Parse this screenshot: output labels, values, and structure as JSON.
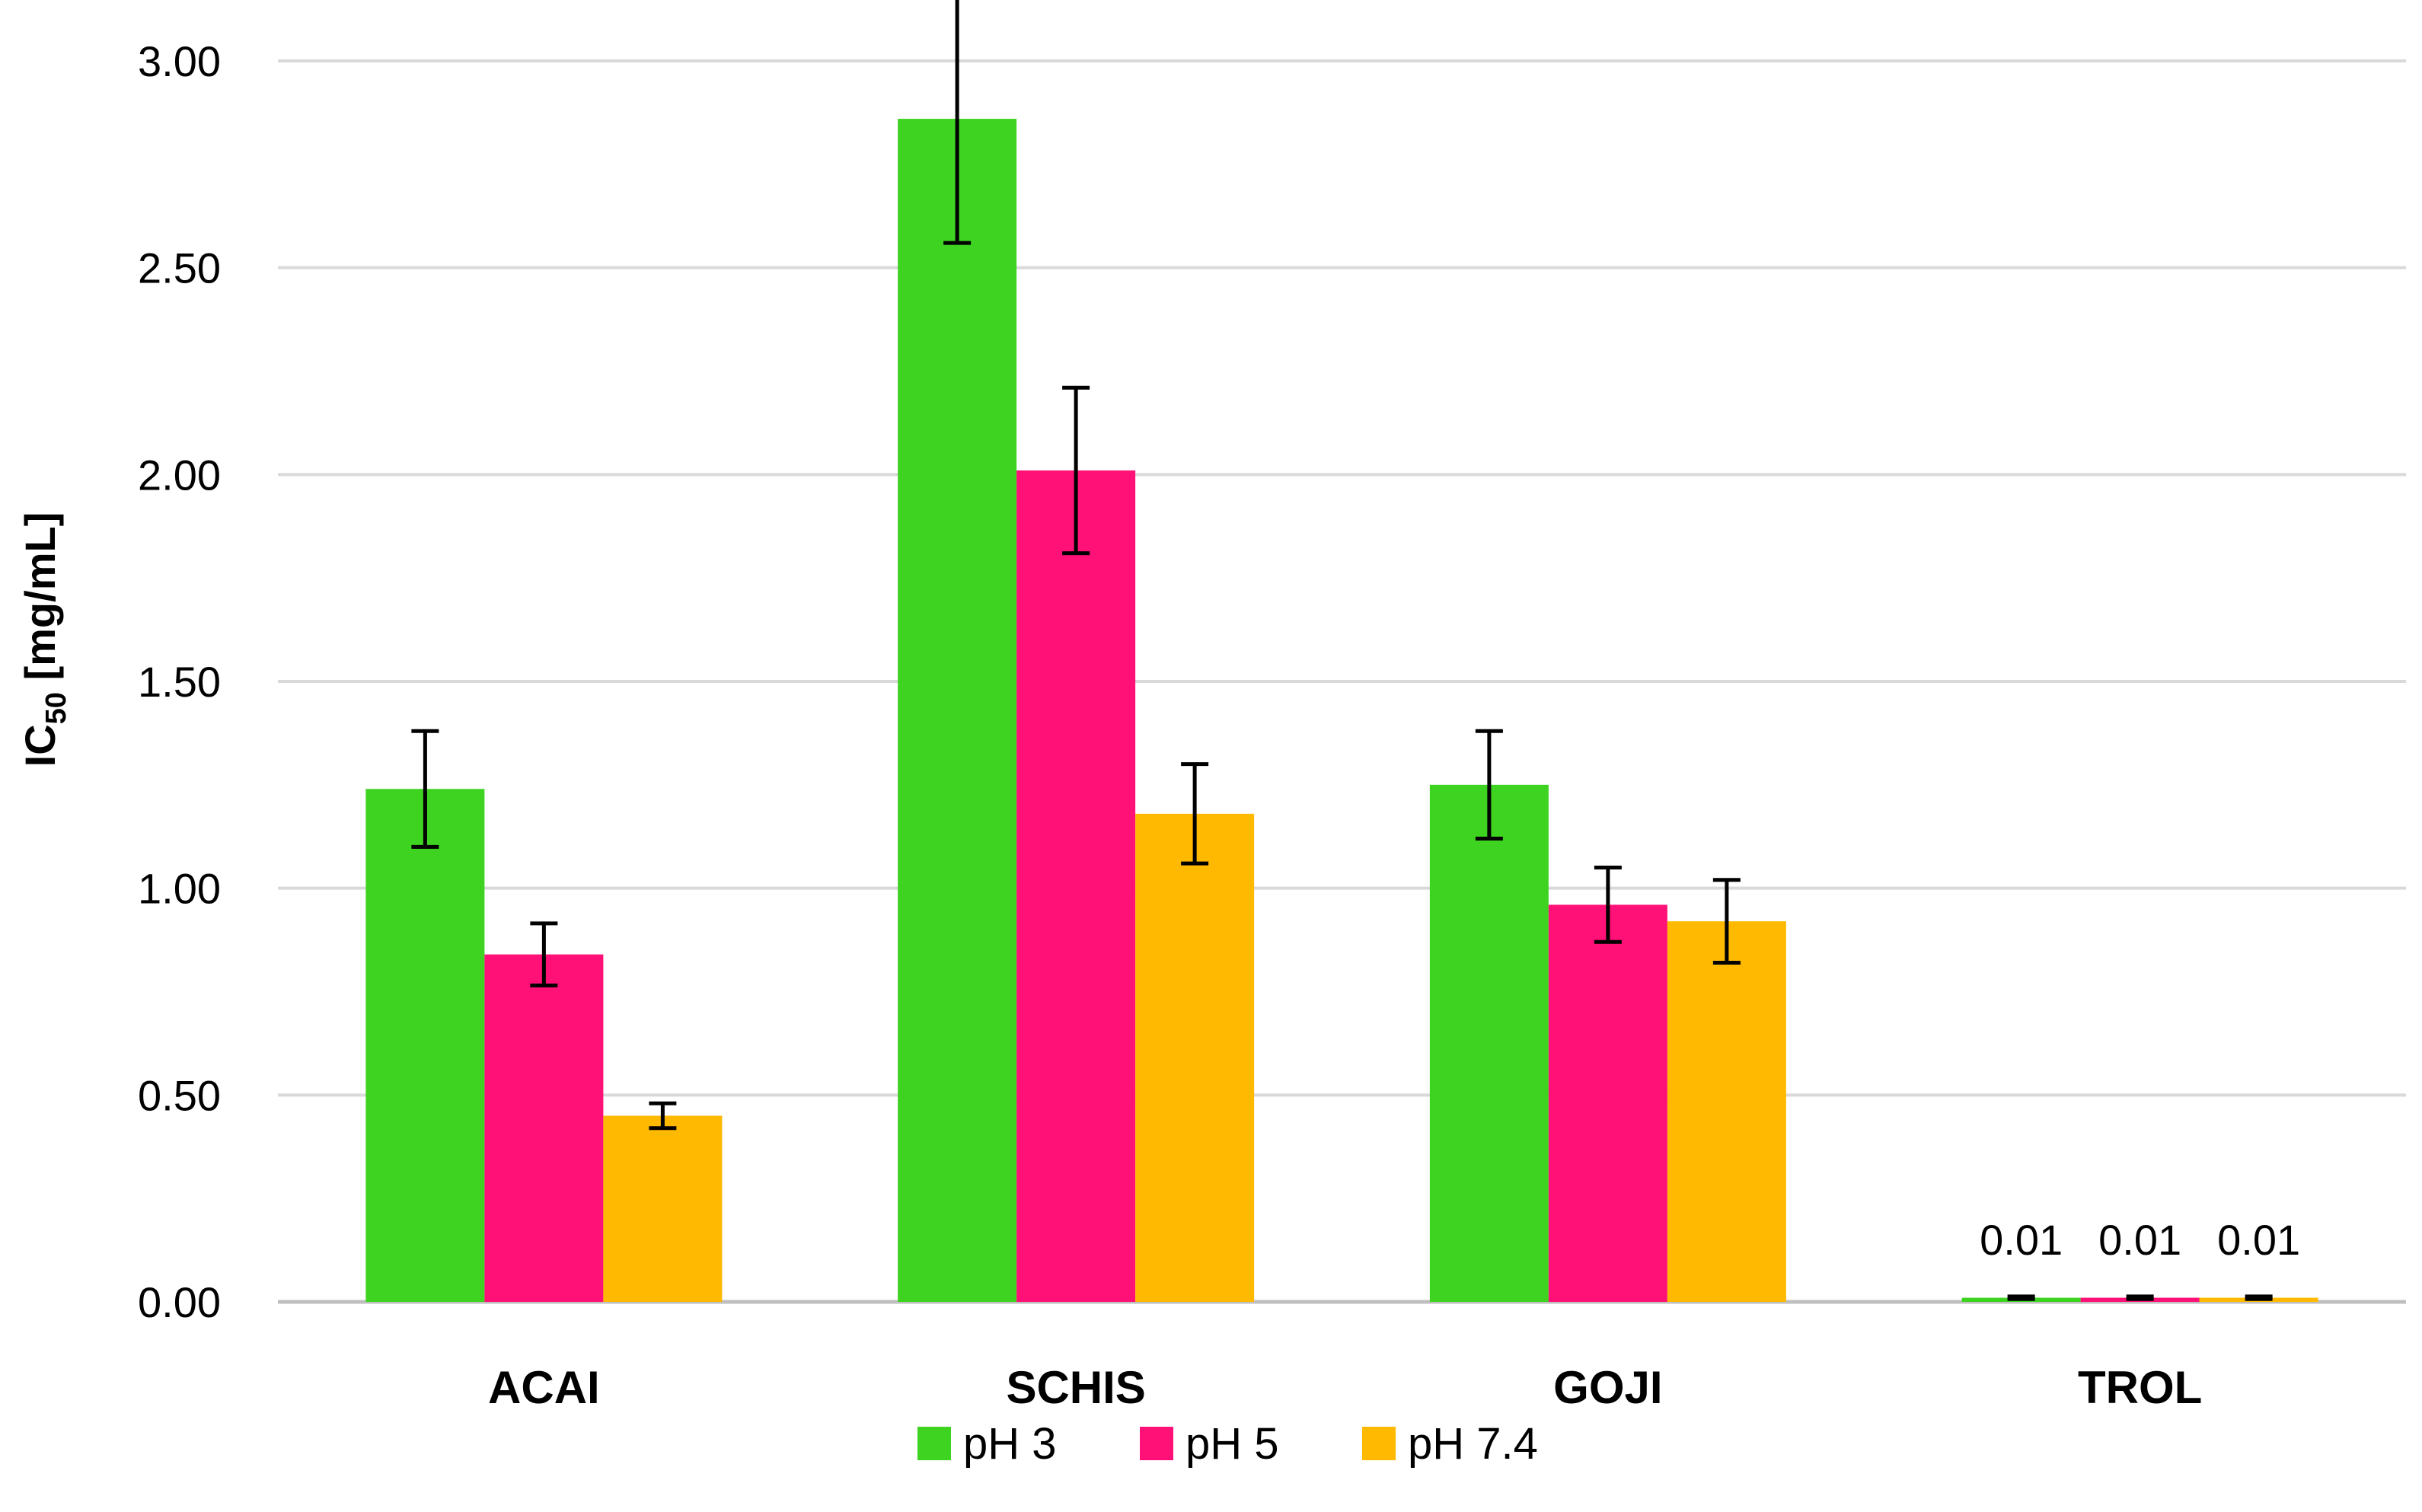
{
  "chart_data": {
    "type": "bar",
    "title": "",
    "xlabel": "",
    "ylabel": {
      "main": "IC",
      "subscript": "50",
      "unit": " [mg/mL]"
    },
    "ylim": [
      0,
      3
    ],
    "yticks": [
      "0.00",
      "0.50",
      "1.00",
      "1.50",
      "2.00",
      "2.50",
      "3.00"
    ],
    "grid": true,
    "legend_position": "bottom",
    "categories": [
      "ACAI",
      "SCHIS",
      "GOJI",
      "TROL"
    ],
    "series": [
      {
        "name": "pH 3",
        "color": "#3ed321",
        "values": [
          1.24,
          2.86,
          1.25,
          0.01
        ],
        "errors": [
          0.14,
          0.3,
          0.13,
          0.003
        ]
      },
      {
        "name": "pH 5",
        "color": "#ff1177",
        "values": [
          0.84,
          2.01,
          0.96,
          0.01
        ],
        "errors": [
          0.075,
          0.2,
          0.09,
          0.003
        ]
      },
      {
        "name": "pH 7.4",
        "color": "#ffb900",
        "values": [
          0.45,
          1.18,
          0.92,
          0.01
        ],
        "errors": [
          0.03,
          0.12,
          0.1,
          0.003
        ]
      }
    ],
    "data_labels": [
      {
        "category": "TROL",
        "series": "pH 3",
        "text": "0.01"
      },
      {
        "category": "TROL",
        "series": "pH 5",
        "text": "0.01"
      },
      {
        "category": "TROL",
        "series": "pH 7.4",
        "text": "0.01"
      }
    ]
  }
}
